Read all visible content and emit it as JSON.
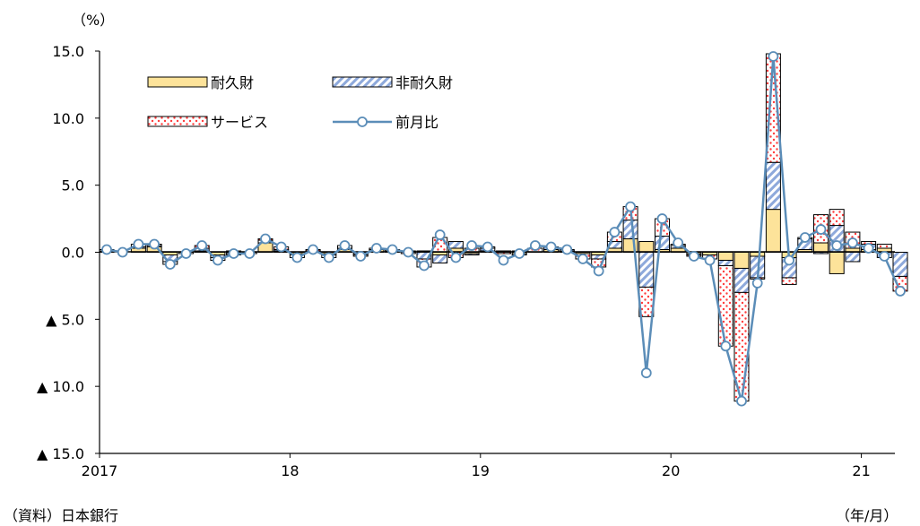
{
  "chart_data": {
    "type": "bar",
    "stacked": true,
    "unit_label": "（%）",
    "x_unit_label": "（年/月）",
    "source": "（資料）日本銀行",
    "ylim": [
      -15,
      15
    ],
    "y_ticks": [
      {
        "value": 15,
        "label": "15.0"
      },
      {
        "value": 10,
        "label": "10.0"
      },
      {
        "value": 5,
        "label": "5.0"
      },
      {
        "value": 0,
        "label": "0.0"
      },
      {
        "value": -5,
        "label": "▲ 5.0"
      },
      {
        "value": -10,
        "label": "▲ 10.0"
      },
      {
        "value": -15,
        "label": "▲ 15.0"
      }
    ],
    "x_ticks": [
      {
        "index": 0,
        "label": "2017"
      },
      {
        "index": 12,
        "label": "18"
      },
      {
        "index": 24,
        "label": "19"
      },
      {
        "index": 36,
        "label": "20"
      },
      {
        "index": 48,
        "label": "21"
      }
    ],
    "legend": {
      "placement": "top-left",
      "columns": 2
    },
    "colors": {
      "durable": "#fde39a",
      "nondurable_stripe": "#8ea9db",
      "service_dot": "#ff3b3b",
      "line": "#5b8db8",
      "marker_fill": "#ffffff",
      "bar_edge": "#000000"
    },
    "series": [
      {
        "name": "耐久財",
        "kind": "bar",
        "pattern": "solid",
        "values": [
          0.1,
          0.0,
          0.3,
          0.4,
          -0.2,
          0.0,
          0.1,
          -0.2,
          0.1,
          0.0,
          0.7,
          0.1,
          -0.1,
          0.1,
          -0.1,
          0.2,
          -0.1,
          0.2,
          0.1,
          0.0,
          0.1,
          -0.2,
          0.3,
          -0.1,
          0.1,
          0.0,
          -0.1,
          0.0,
          0.2,
          0.1,
          -0.1,
          -0.2,
          0.3,
          1.0,
          0.8,
          0.2,
          0.3,
          -0.1,
          -0.2,
          -0.6,
          -1.2,
          -0.3,
          3.2,
          -0.4,
          0.2,
          0.7,
          -1.6,
          0.3,
          0.2,
          0.3,
          0.0
        ]
      },
      {
        "name": "非耐久財",
        "kind": "bar",
        "pattern": "hatch",
        "values": [
          0.0,
          0.0,
          0.1,
          0.1,
          -0.5,
          0.0,
          0.2,
          -0.2,
          -0.1,
          0.0,
          0.2,
          0.1,
          -0.1,
          0.0,
          -0.1,
          0.1,
          -0.1,
          0.0,
          0.1,
          0.1,
          -0.5,
          -0.6,
          0.5,
          -0.1,
          0.2,
          0.1,
          -0.1,
          0.0,
          0.2,
          0.1,
          0.0,
          -0.3,
          0.5,
          1.4,
          -2.6,
          1.0,
          0.2,
          -0.1,
          0.0,
          -0.4,
          -1.8,
          -1.6,
          3.5,
          -1.5,
          0.8,
          -0.1,
          2.0,
          -0.7,
          0.4,
          -0.4,
          -1.8
        ]
      },
      {
        "name": "サービス",
        "kind": "bar",
        "pattern": "dots",
        "values": [
          0.1,
          0.0,
          0.2,
          0.1,
          -0.2,
          -0.1,
          0.2,
          -0.2,
          -0.1,
          -0.1,
          0.1,
          0.2,
          -0.2,
          0.1,
          -0.2,
          0.2,
          -0.1,
          0.1,
          0.0,
          -0.1,
          -0.6,
          1.1,
          -0.4,
          0.3,
          0.1,
          -0.1,
          0.1,
          0.3,
          0.0,
          0.0,
          -0.4,
          -0.6,
          0.7,
          1.0,
          -2.2,
          1.3,
          0.1,
          -0.1,
          -0.3,
          -6.0,
          -8.1,
          -0.1,
          8.1,
          -0.5,
          0.1,
          2.1,
          1.2,
          1.2,
          0.2,
          0.3,
          -1.1
        ]
      },
      {
        "name": "前月比",
        "kind": "line",
        "values": [
          0.2,
          0.0,
          0.6,
          0.6,
          -0.9,
          -0.1,
          0.5,
          -0.6,
          -0.1,
          -0.1,
          1.0,
          0.4,
          -0.4,
          0.2,
          -0.4,
          0.5,
          -0.3,
          0.3,
          0.2,
          0.0,
          -1.0,
          1.3,
          -0.4,
          0.5,
          0.4,
          -0.6,
          -0.1,
          0.5,
          0.4,
          0.2,
          -0.5,
          -1.4,
          1.5,
          3.4,
          -9.0,
          2.5,
          0.7,
          -0.3,
          -0.6,
          -7.0,
          -11.1,
          -2.3,
          14.6,
          -0.6,
          1.1,
          1.7,
          0.5,
          0.7,
          0.3,
          -0.3,
          -2.9
        ]
      }
    ]
  }
}
